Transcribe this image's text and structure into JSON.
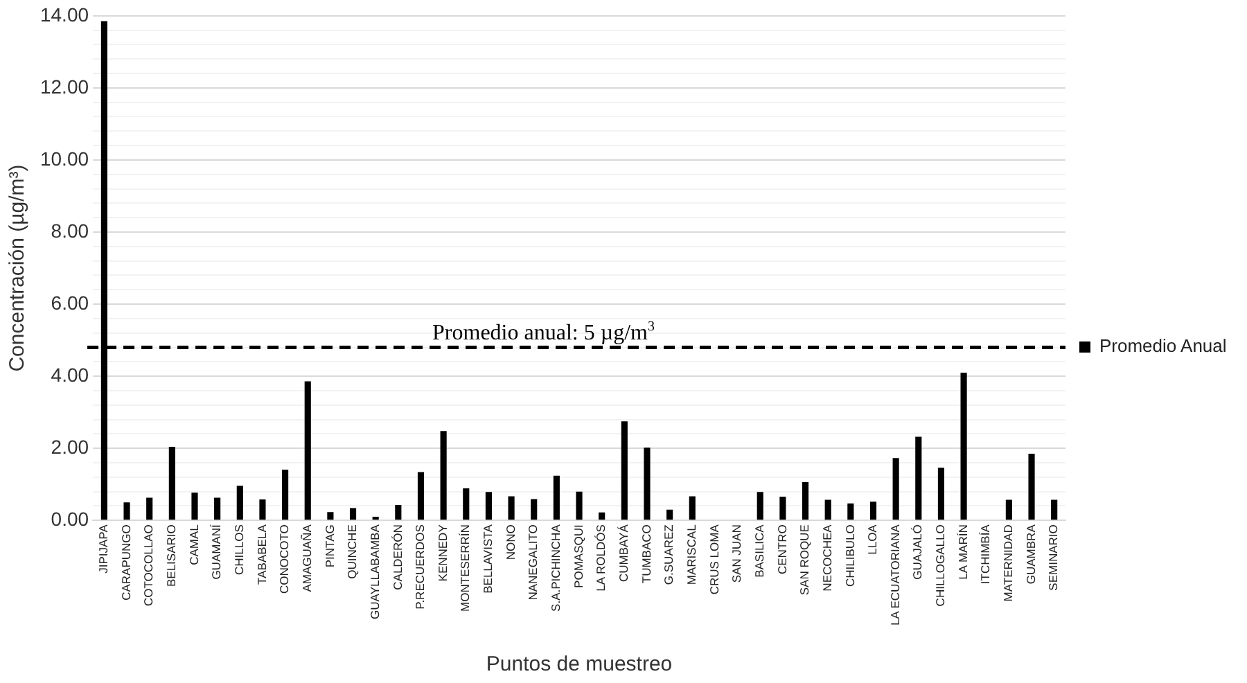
{
  "chart_data": {
    "type": "bar",
    "xlabel": "Puntos de muestreo",
    "ylabel": "Concentración (µg/m³)",
    "categories": [
      "JIPIJAPA",
      "CARAPUNGO",
      "COTOCOLLAO",
      "BELISARIO",
      "CAMAL",
      "GUAMANÍ",
      "CHILLOS",
      "TABABELA",
      "CONOCOTO",
      "AMAGUAÑA",
      "PINTAG",
      "QUINCHE",
      "GUAYLLABAMBA",
      "CALDERÓN",
      "P.RECUERDOS",
      "KENNEDY",
      "MONTESERRÍN",
      "BELLAVISTA",
      "NONO",
      "NANEGALITO",
      "S.A.PICHINCHA",
      "POMASQUI",
      "LA ROLDÓS",
      "CUMBAYÁ",
      "TUMBACO",
      "G.SUAREZ",
      "MARISCAL",
      "CRUS LOMA",
      "SAN JUAN",
      "BASILICA",
      "CENTRO",
      "SAN ROQUE",
      "NECOCHEA",
      "CHILIBULO",
      "LLOA",
      "LA ECUATORIANA",
      "GUAJALÓ",
      "CHILLOGALLO",
      "LA MARÍN",
      "ITCHIMBÍA",
      "MATERNIDAD",
      "GUAMBRA",
      "SEMINARIO"
    ],
    "series": [
      {
        "name": "Promedio Anual",
        "color": "#000000",
        "values": [
          13.85,
          0.5,
          0.63,
          2.04,
          0.77,
          0.63,
          0.96,
          0.58,
          1.41,
          3.86,
          0.23,
          0.34,
          0.1,
          0.43,
          1.34,
          2.48,
          0.89,
          0.79,
          0.67,
          0.59,
          1.24,
          0.8,
          0.22,
          2.75,
          2.02,
          0.3,
          0.67,
          null,
          null,
          0.79,
          0.66,
          1.06,
          0.57,
          0.47,
          0.52,
          1.73,
          2.32,
          1.46,
          4.1,
          null,
          0.57,
          1.85,
          0.57
        ]
      }
    ],
    "ylim": [
      0,
      14
    ],
    "yticks": [
      {
        "value": 0,
        "label": "0.00"
      },
      {
        "value": 0.4,
        "label": null
      },
      {
        "value": 0.8,
        "label": null
      },
      {
        "value": 1.2,
        "label": null
      },
      {
        "value": 1.6,
        "label": null
      },
      {
        "value": 2,
        "label": "2.00"
      },
      {
        "value": 2.4,
        "label": null
      },
      {
        "value": 2.8,
        "label": null
      },
      {
        "value": 3.2,
        "label": null
      },
      {
        "value": 3.6,
        "label": null
      },
      {
        "value": 4,
        "label": "4.00"
      },
      {
        "value": 4.4,
        "label": null
      },
      {
        "value": 4.8,
        "label": null
      },
      {
        "value": 5.2,
        "label": null
      },
      {
        "value": 5.6,
        "label": null
      },
      {
        "value": 6,
        "label": "6.00"
      },
      {
        "value": 6.4,
        "label": null
      },
      {
        "value": 6.8,
        "label": null
      },
      {
        "value": 7.2,
        "label": null
      },
      {
        "value": 7.6,
        "label": null
      },
      {
        "value": 8,
        "label": "8.00"
      },
      {
        "value": 8.4,
        "label": null
      },
      {
        "value": 8.8,
        "label": null
      },
      {
        "value": 9.2,
        "label": null
      },
      {
        "value": 9.6,
        "label": null
      },
      {
        "value": 10,
        "label": "10.00"
      },
      {
        "value": 10.4,
        "label": null
      },
      {
        "value": 10.8,
        "label": null
      },
      {
        "value": 11.2,
        "label": null
      },
      {
        "value": 11.6,
        "label": null
      },
      {
        "value": 12,
        "label": "12.00"
      },
      {
        "value": 12.4,
        "label": null
      },
      {
        "value": 12.8,
        "label": null
      },
      {
        "value": 13.2,
        "label": null
      },
      {
        "value": 13.6,
        "label": null
      },
      {
        "value": 14,
        "label": "14.00"
      }
    ],
    "grid": "y",
    "legend": "right",
    "ref_lines": [
      {
        "axis": "y",
        "value": 4.8,
        "label": "Promedio anual: 5 µg/m$^{3}$",
        "color": "#000000",
        "line_style": "dashed"
      }
    ]
  }
}
